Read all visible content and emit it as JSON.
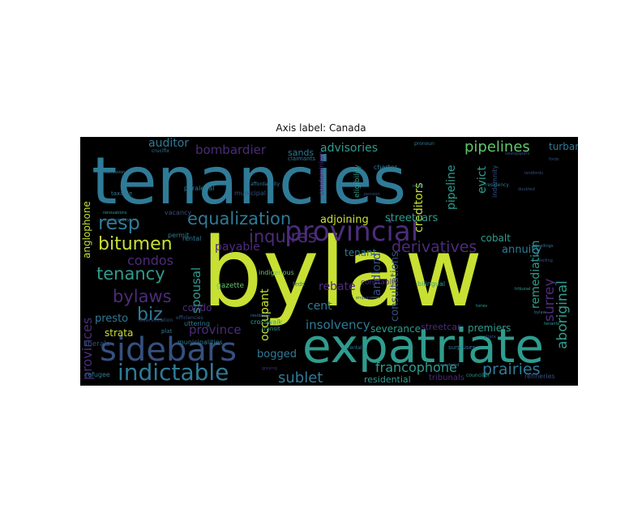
{
  "figure": {
    "title": "Axis label: Canada"
  },
  "chart_data": {
    "type": "wordcloud",
    "title": "Axis label: Canada",
    "background": "#000000",
    "palette": {
      "yellow": "#c8e033",
      "teal": "#2f9c8e",
      "blue": "#2f7b97",
      "purple": "#4c2c7a",
      "green": "#62c76a",
      "darkblue": "#35507f"
    },
    "words": [
      {
        "text": "bylaw",
        "weight": 1.0,
        "color": "#c8e033"
      },
      {
        "text": "tenancies",
        "weight": 0.92,
        "color": "#2f7b97"
      },
      {
        "text": "expatriate",
        "weight": 0.62,
        "color": "#2f9c8e"
      },
      {
        "text": "provincial",
        "weight": 0.42,
        "color": "#4c2c7a"
      },
      {
        "text": "sidebars",
        "weight": 0.4,
        "color": "#35507f"
      },
      {
        "text": "indictable",
        "weight": 0.3,
        "color": "#2f7b97"
      },
      {
        "text": "equalization",
        "weight": 0.24,
        "color": "#2f7b97"
      },
      {
        "text": "resp",
        "weight": 0.26,
        "color": "#2f7b97"
      },
      {
        "text": "bitumen",
        "weight": 0.24,
        "color": "#c8e033"
      },
      {
        "text": "tenancy",
        "weight": 0.22,
        "color": "#2f9c8e"
      },
      {
        "text": "bylaws",
        "weight": 0.22,
        "color": "#4c2c7a"
      },
      {
        "text": "biz",
        "weight": 0.22,
        "color": "#2f7b97"
      },
      {
        "text": "inquires",
        "weight": 0.22,
        "color": "#4c2c7a"
      },
      {
        "text": "derivatives",
        "weight": 0.2,
        "color": "#4c2c7a"
      },
      {
        "text": "pipelines",
        "weight": 0.2,
        "color": "#62c76a"
      },
      {
        "text": "prairies",
        "weight": 0.2,
        "color": "#2f7b97"
      },
      {
        "text": "provinces",
        "weight": 0.18,
        "color": "#4c2c7a"
      },
      {
        "text": "sublet",
        "weight": 0.18,
        "color": "#2f7b97"
      },
      {
        "text": "francophone",
        "weight": 0.16,
        "color": "#2f9c8e"
      },
      {
        "text": "aboriginal",
        "weight": 0.16,
        "color": "#2f9c8e"
      },
      {
        "text": "surrey",
        "weight": 0.16,
        "color": "#4c2c7a"
      },
      {
        "text": "bombardier",
        "weight": 0.16,
        "color": "#4c2c7a"
      },
      {
        "text": "auditor",
        "weight": 0.15,
        "color": "#2f7b97"
      },
      {
        "text": "advisories",
        "weight": 0.15,
        "color": "#2f9c8e"
      },
      {
        "text": "condos",
        "weight": 0.15,
        "color": "#4c2c7a"
      },
      {
        "text": "spousal",
        "weight": 0.15,
        "color": "#2f9c8e"
      },
      {
        "text": "pipeline",
        "weight": 0.14,
        "color": "#2f9c8e"
      },
      {
        "text": "creditors",
        "weight": 0.14,
        "color": "#c8e033"
      },
      {
        "text": "insolvency",
        "weight": 0.14,
        "color": "#2f7b97"
      },
      {
        "text": "occupant",
        "weight": 0.13,
        "color": "#c8e033"
      },
      {
        "text": "landlord",
        "weight": 0.13,
        "color": "#35507f"
      },
      {
        "text": "consultations",
        "weight": 0.12,
        "color": "#35507f"
      },
      {
        "text": "remediation",
        "weight": 0.12,
        "color": "#2f9c8e"
      },
      {
        "text": "province",
        "weight": 0.13,
        "color": "#4c2c7a"
      },
      {
        "text": "bogged",
        "weight": 0.12,
        "color": "#2f7b97"
      },
      {
        "text": "presto",
        "weight": 0.12,
        "color": "#2f7b97"
      },
      {
        "text": "adjoining",
        "weight": 0.12,
        "color": "#c8e033"
      },
      {
        "text": "streetcars",
        "weight": 0.12,
        "color": "#2f9c8e"
      },
      {
        "text": "annuity",
        "weight": 0.11,
        "color": "#2f7b97"
      },
      {
        "text": "payable",
        "weight": 0.12,
        "color": "#4c2c7a"
      },
      {
        "text": "tenant",
        "weight": 0.1,
        "color": "#2f7b97"
      },
      {
        "text": "rebate",
        "weight": 0.11,
        "color": "#4c2c7a"
      },
      {
        "text": "cent",
        "weight": 0.11,
        "color": "#2f7b97"
      },
      {
        "text": "severance",
        "weight": 0.1,
        "color": "#2f9c8e"
      },
      {
        "text": "premiers",
        "weight": 0.1,
        "color": "#2f9c8e"
      },
      {
        "text": "streetcar",
        "weight": 0.1,
        "color": "#4c2c7a"
      },
      {
        "text": "residential",
        "weight": 0.09,
        "color": "#2f9c8e"
      },
      {
        "text": "tribunals",
        "weight": 0.08,
        "color": "#4c2c7a"
      },
      {
        "text": "evict",
        "weight": 0.12,
        "color": "#2f9c8e"
      },
      {
        "text": "cobalt",
        "weight": 0.09,
        "color": "#2f9c8e"
      },
      {
        "text": "turban",
        "weight": 0.09,
        "color": "#2f7b97"
      },
      {
        "text": "anglophone",
        "weight": 0.11,
        "color": "#c8e033"
      },
      {
        "text": "condo",
        "weight": 0.1,
        "color": "#4c2c7a"
      },
      {
        "text": "strata",
        "weight": 0.1,
        "color": "#c8e033"
      },
      {
        "text": "sands",
        "weight": 0.09,
        "color": "#2f7b97"
      },
      {
        "text": "liberals",
        "weight": 0.07,
        "color": "#35507f"
      },
      {
        "text": "refugee",
        "weight": 0.06,
        "color": "#2f7b97"
      },
      {
        "text": "refineries",
        "weight": 0.06,
        "color": "#35507f"
      },
      {
        "text": "constable",
        "weight": 0.07,
        "color": "#4c2c7a"
      },
      {
        "text": "gazette",
        "weight": 0.07,
        "color": "#62c76a"
      },
      {
        "text": "eligibility",
        "weight": 0.08,
        "color": "#2f9c8e"
      },
      {
        "text": "condominium",
        "weight": 0.07,
        "color": "#4c2c7a"
      },
      {
        "text": "charter",
        "weight": 0.07,
        "color": "#2f7b97"
      },
      {
        "text": "indigenous",
        "weight": 0.06,
        "color": "#62c76a"
      },
      {
        "text": "bilingual",
        "weight": 0.06,
        "color": "#2f9c8e"
      },
      {
        "text": "rental",
        "weight": 0.06,
        "color": "#2f7b97"
      },
      {
        "text": "permit",
        "weight": 0.06,
        "color": "#2f7b97"
      },
      {
        "text": "vacancy",
        "weight": 0.06,
        "color": "#35507f"
      },
      {
        "text": "paralegal",
        "weight": 0.06,
        "color": "#2f7b97"
      },
      {
        "text": "municipal",
        "weight": 0.06,
        "color": "#35507f"
      },
      {
        "text": "municipalities",
        "weight": 0.06,
        "color": "#2f7b97"
      },
      {
        "text": "uttering",
        "weight": 0.06,
        "color": "#2f7b97"
      },
      {
        "text": "crosswalk",
        "weight": 0.06,
        "color": "#2f9c8e"
      },
      {
        "text": "plat",
        "weight": 0.06,
        "color": "#2f7b97"
      },
      {
        "text": "diversification",
        "weight": 0.05,
        "color": "#35507f"
      },
      {
        "text": "transit",
        "weight": 0.05,
        "color": "#2f9c8e"
      },
      {
        "text": "feds",
        "weight": 0.05,
        "color": "#2f7b97"
      },
      {
        "text": "surpluses",
        "weight": 0.05,
        "color": "#2f7b97"
      },
      {
        "text": "claimants",
        "weight": 0.05,
        "color": "#2f7b97"
      },
      {
        "text": "indemnity",
        "weight": 0.05,
        "color": "#35507f"
      },
      {
        "text": "taxable",
        "weight": 0.05,
        "color": "#2f7b97"
      },
      {
        "text": "efficiencies",
        "weight": 0.05,
        "color": "#35507f"
      },
      {
        "text": "rentals",
        "weight": 0.05,
        "color": "#2f7b97"
      },
      {
        "text": "affordability",
        "weight": 0.04,
        "color": "#2f7b97"
      },
      {
        "text": "residency",
        "weight": 0.04,
        "color": "#2f7b97"
      },
      {
        "text": "pronoun",
        "weight": 0.04,
        "color": "#2f7b97"
      },
      {
        "text": "doubted",
        "weight": 0.04,
        "color": "#35507f"
      },
      {
        "text": "dwellings",
        "weight": 0.04,
        "color": "#2f7b97"
      },
      {
        "text": "retail",
        "weight": 0.04,
        "color": "#2f7b97"
      },
      {
        "text": "pension",
        "weight": 0.04,
        "color": "#35507f"
      },
      {
        "text": "tories",
        "weight": 0.04,
        "color": "#2f9c8e"
      },
      {
        "text": "greying",
        "weight": 0.04,
        "color": "#4c2c7a"
      },
      {
        "text": "residence",
        "weight": 0.04,
        "color": "#2f7b97"
      },
      {
        "text": "renovations",
        "weight": 0.04,
        "color": "#2f9c8e"
      },
      {
        "text": "strata",
        "weight": 0.04,
        "color": "#35507f"
      },
      {
        "text": "bylaw",
        "weight": 0.04,
        "color": "#2f7b97"
      },
      {
        "text": "dwelling",
        "weight": 0.03,
        "color": "#35507f"
      },
      {
        "text": "tribunal",
        "weight": 0.03,
        "color": "#2f9c8e"
      },
      {
        "text": "landlords",
        "weight": 0.03,
        "color": "#35507f"
      },
      {
        "text": "municipality",
        "weight": 0.03,
        "color": "#2f7b97"
      },
      {
        "text": "enquiry",
        "weight": 0.03,
        "color": "#35507f"
      },
      {
        "text": "crucifix",
        "weight": 0.03,
        "color": "#2f7b97"
      },
      {
        "text": "admission",
        "weight": 0.03,
        "color": "#2f7b97"
      },
      {
        "text": "fords",
        "weight": 0.03,
        "color": "#35507f"
      },
      {
        "text": "councillor",
        "weight": 0.03,
        "color": "#2f9c8e"
      },
      {
        "text": "newspapers",
        "weight": 0.03,
        "color": "#35507f"
      },
      {
        "text": "laundered",
        "weight": 0.03,
        "color": "#2f7b97"
      },
      {
        "text": "tenants",
        "weight": 0.03,
        "color": "#2f9c8e"
      }
    ]
  }
}
